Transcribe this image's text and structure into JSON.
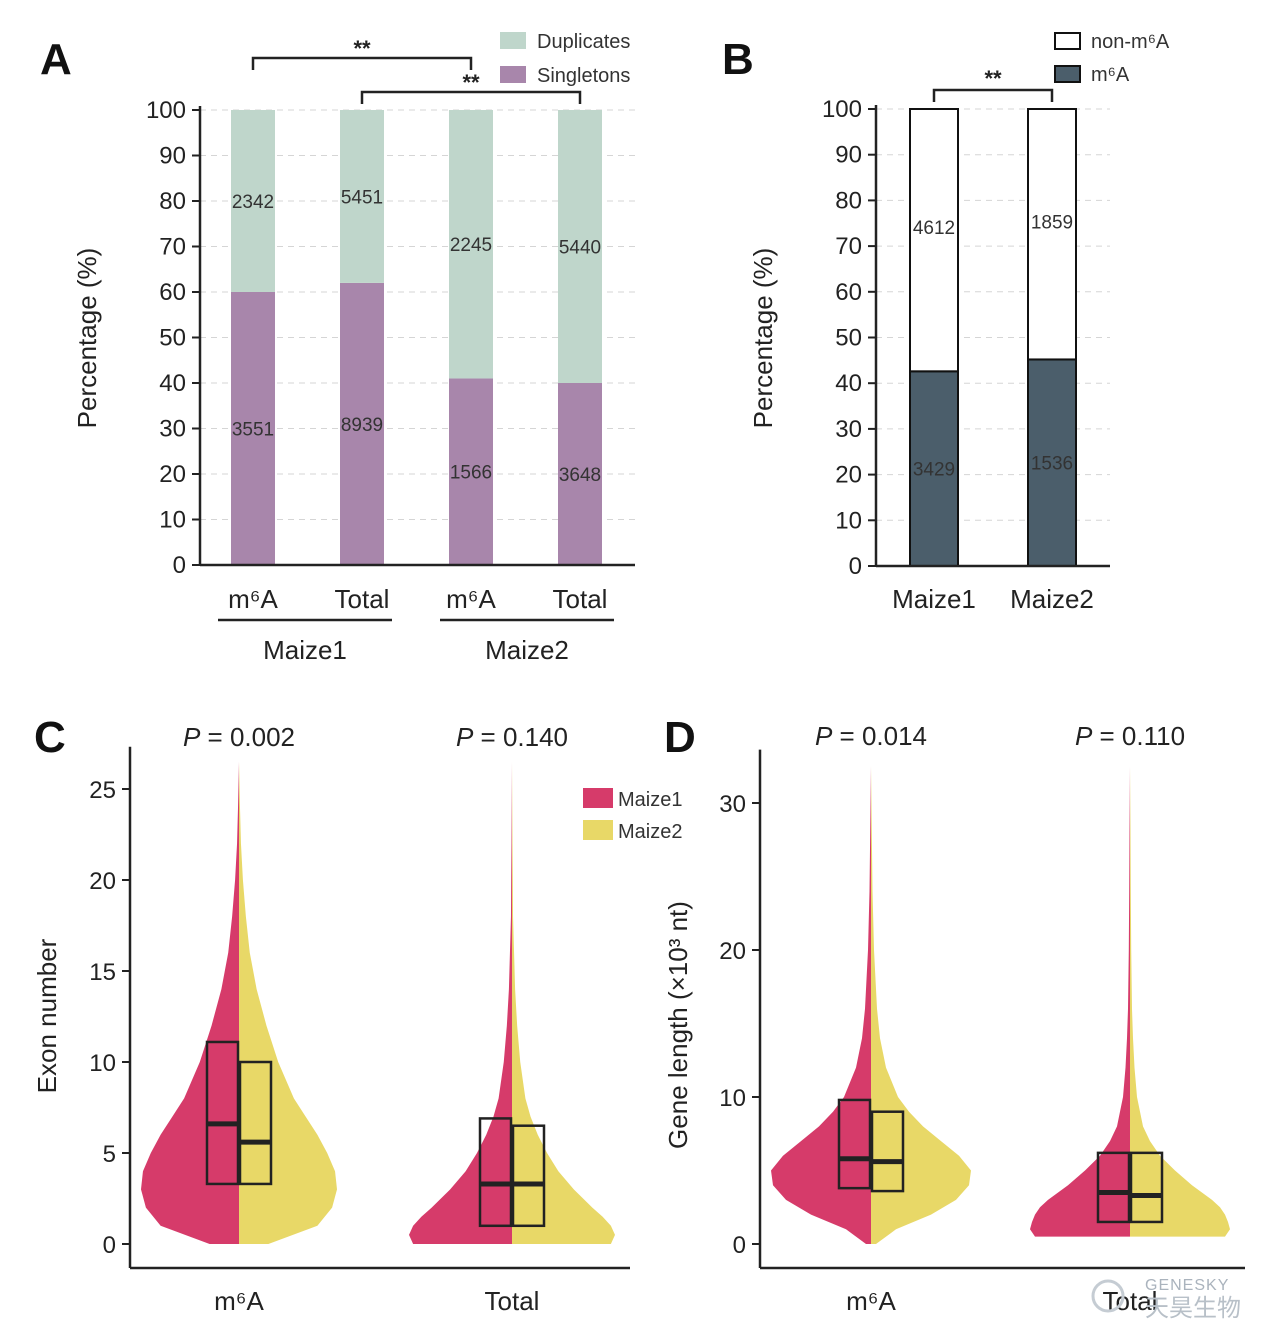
{
  "panels": {
    "A": "A",
    "B": "B",
    "C": "C",
    "D": "D"
  },
  "colors": {
    "duplicates": "#bfd6cb",
    "singletons": "#a886ab",
    "non_m6a": "#ffffff",
    "m6a": "#4b5e6b",
    "maize1": "#d63b6a",
    "maize2": "#e8d867"
  },
  "watermark": {
    "en": "GENESKY",
    "cn": "天昊生物"
  },
  "chart_data": [
    {
      "panel": "A",
      "type": "bar",
      "stacked": true,
      "ylabel": "Percentage (%)",
      "ylim": [
        0,
        100
      ],
      "yticks": [
        "0",
        "10",
        "20",
        "30",
        "40",
        "50",
        "60",
        "70",
        "80",
        "90",
        "100"
      ],
      "grid": true,
      "legend": "top-right",
      "categories": [
        "m⁶A",
        "Total",
        "m⁶A",
        "Total"
      ],
      "groups": [
        {
          "name": "Maize1",
          "indices": [
            0,
            1
          ]
        },
        {
          "name": "Maize2",
          "indices": [
            2,
            3
          ]
        }
      ],
      "series": [
        {
          "name": "Singletons",
          "values": [
            60,
            62,
            41,
            40
          ],
          "labels": [
            "3551",
            "8939",
            "1566",
            "3648"
          ]
        },
        {
          "name": "Duplicates",
          "values": [
            40,
            38,
            59,
            60
          ],
          "labels": [
            "2342",
            "5451",
            "2245",
            "5440"
          ]
        }
      ],
      "significance": [
        {
          "from": 0,
          "to": 2,
          "label": "**"
        },
        {
          "from": 1,
          "to": 3,
          "label": "**"
        }
      ]
    },
    {
      "panel": "B",
      "type": "bar",
      "stacked": true,
      "ylabel": "Percentage (%)",
      "ylim": [
        0,
        100
      ],
      "yticks": [
        "0",
        "10",
        "20",
        "30",
        "40",
        "50",
        "60",
        "70",
        "80",
        "90",
        "100"
      ],
      "grid": true,
      "legend": "top-right",
      "categories": [
        "Maize1",
        "Maize2"
      ],
      "series": [
        {
          "name": "m⁶A",
          "values": [
            42.6,
            45.2
          ],
          "labels": [
            "3429",
            "1536"
          ]
        },
        {
          "name": "non-m⁶A",
          "values": [
            57.4,
            54.8
          ],
          "labels": [
            "4612",
            "1859"
          ]
        }
      ],
      "significance": [
        {
          "from": 0,
          "to": 1,
          "label": "**"
        }
      ]
    },
    {
      "panel": "C",
      "type": "violin",
      "split": true,
      "ylabel": "Exon number",
      "ylim": [
        0,
        26
      ],
      "yticks": [
        "0",
        "5",
        "10",
        "15",
        "20",
        "25"
      ],
      "legend": "top-right",
      "series_names": [
        "Maize1",
        "Maize2"
      ],
      "groups": [
        {
          "name": "m⁶A",
          "p": "0.002",
          "ymax": 26.5,
          "maxwidth": 98,
          "density_y": [
            0,
            1,
            2,
            3,
            4,
            5,
            6,
            7,
            8,
            10,
            12,
            14,
            16,
            18,
            20,
            22,
            24,
            26.5
          ],
          "density_w": [
            0.3,
            0.8,
            0.95,
            1,
            0.98,
            0.9,
            0.8,
            0.68,
            0.56,
            0.4,
            0.28,
            0.18,
            0.11,
            0.07,
            0.04,
            0.02,
            0.01,
            0
          ],
          "box": [
            {
              "q1": 3.3,
              "median": 6.6,
              "q3": 11.1
            },
            {
              "q1": 3.3,
              "median": 5.6,
              "q3": 10
            }
          ]
        },
        {
          "name": "Total",
          "p": "0.140",
          "ymax": 26.5,
          "maxwidth": 103,
          "density_y": [
            0,
            0.5,
            1,
            1.5,
            2,
            3,
            4,
            5,
            6,
            7,
            8,
            10,
            12,
            14,
            16,
            18,
            20,
            22,
            26.5
          ],
          "density_w": [
            0.96,
            1,
            0.96,
            0.88,
            0.78,
            0.6,
            0.45,
            0.34,
            0.25,
            0.18,
            0.13,
            0.08,
            0.05,
            0.03,
            0.02,
            0.01,
            0.008,
            0.005,
            0
          ],
          "box": [
            {
              "q1": 1,
              "median": 3.3,
              "q3": 6.9
            },
            {
              "q1": 1,
              "median": 3.3,
              "q3": 6.5
            }
          ]
        }
      ]
    },
    {
      "panel": "D",
      "type": "violin",
      "split": true,
      "ylabel": "Gene length (×10³ nt)",
      "ylim": [
        0,
        32
      ],
      "yticks": [
        "0",
        "10",
        "20",
        "30"
      ],
      "legend": "none",
      "series_names": [
        "Maize1",
        "Maize2"
      ],
      "groups": [
        {
          "name": "m⁶A",
          "p": "0.014",
          "ymax": 32.5,
          "maxwidth": 100,
          "density_y": [
            0,
            1,
            2,
            3,
            4,
            5,
            6,
            7,
            8,
            9,
            10,
            12,
            14,
            16,
            20,
            24,
            28,
            32.5
          ],
          "density_w": [
            0.05,
            0.25,
            0.6,
            0.85,
            0.98,
            1,
            0.88,
            0.7,
            0.52,
            0.38,
            0.27,
            0.15,
            0.09,
            0.06,
            0.03,
            0.015,
            0.008,
            0
          ],
          "box": [
            {
              "q1": 3.8,
              "median": 5.8,
              "q3": 9.8
            },
            {
              "q1": 3.6,
              "median": 5.6,
              "q3": 9
            }
          ]
        },
        {
          "name": "Total",
          "p": "0.110",
          "ymax": 32.5,
          "maxwidth": 100,
          "density_y": [
            0.5,
            1,
            1.5,
            2,
            2.5,
            3,
            4,
            5,
            6,
            7,
            8,
            10,
            12,
            14,
            16,
            20,
            24,
            28,
            32.5
          ],
          "density_w": [
            0.95,
            1,
            0.98,
            0.95,
            0.9,
            0.82,
            0.62,
            0.45,
            0.3,
            0.2,
            0.13,
            0.07,
            0.045,
            0.03,
            0.02,
            0.012,
            0.008,
            0.005,
            0
          ],
          "box": [
            {
              "q1": 1.5,
              "median": 3.5,
              "q3": 6.2
            },
            {
              "q1": 1.5,
              "median": 3.3,
              "q3": 6.2
            }
          ]
        }
      ]
    }
  ]
}
